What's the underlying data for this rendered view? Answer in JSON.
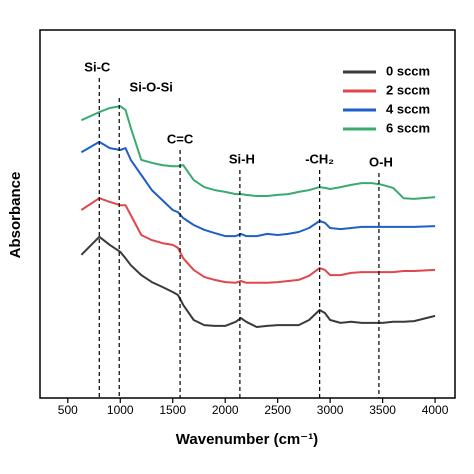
{
  "chart_data": {
    "type": "line",
    "xlabel": "Wavenumber (cm⁻¹)",
    "ylabel": "Absorbance",
    "x": [
      630,
      800,
      900,
      1000,
      1050,
      1100,
      1200,
      1300,
      1400,
      1500,
      1550,
      1600,
      1700,
      1800,
      1900,
      2000,
      2100,
      2150,
      2200,
      2300,
      2400,
      2500,
      2600,
      2700,
      2800,
      2900,
      2950,
      3000,
      3100,
      3200,
      3300,
      3400,
      3500,
      3600,
      3700,
      3800,
      4000
    ],
    "series": [
      {
        "name": "0 sccm",
        "color": "#3a3a3a",
        "values": [
          38.9,
          43.8,
          41.6,
          39.7,
          38.0,
          36.1,
          33.4,
          31.5,
          30.2,
          28.8,
          28.0,
          25.3,
          21.2,
          19.8,
          19.6,
          19.6,
          20.7,
          21.7,
          20.7,
          19.3,
          19.6,
          19.8,
          19.8,
          19.8,
          21.2,
          23.9,
          23.1,
          21.2,
          20.4,
          20.7,
          20.4,
          20.4,
          20.4,
          20.7,
          20.7,
          20.9,
          22.3
        ]
      },
      {
        "name": "2 sccm",
        "color": "#e0474c",
        "values": [
          51.1,
          54.3,
          53.3,
          52.4,
          52.4,
          49.7,
          44.3,
          42.9,
          42.1,
          41.6,
          40.8,
          38.0,
          34.8,
          32.9,
          32.1,
          31.5,
          31.3,
          31.8,
          31.3,
          31.3,
          31.3,
          31.5,
          31.8,
          32.1,
          33.2,
          35.3,
          34.8,
          33.4,
          33.4,
          34.0,
          34.2,
          34.2,
          34.2,
          34.2,
          34.5,
          34.5,
          34.8
        ]
      },
      {
        "name": "4 sccm",
        "color": "#1f5fc8",
        "values": [
          66.8,
          69.6,
          67.9,
          67.4,
          67.9,
          64.7,
          60.6,
          56.5,
          53.8,
          51.1,
          50.5,
          48.9,
          47.0,
          45.7,
          44.8,
          44.0,
          44.0,
          44.6,
          44.0,
          44.0,
          44.6,
          44.3,
          44.6,
          45.1,
          46.2,
          48.1,
          47.6,
          46.2,
          45.9,
          46.2,
          46.5,
          46.5,
          46.5,
          46.5,
          46.5,
          46.5,
          46.7
        ]
      },
      {
        "name": "6 sccm",
        "color": "#3aaa6e",
        "values": [
          75.5,
          77.7,
          78.8,
          79.3,
          78.3,
          73.4,
          64.7,
          63.9,
          63.3,
          63.0,
          63.0,
          63.3,
          59.2,
          57.3,
          56.5,
          56.0,
          55.4,
          55.4,
          55.2,
          54.9,
          54.9,
          55.2,
          55.4,
          56.0,
          56.5,
          57.3,
          57.1,
          56.8,
          57.3,
          57.9,
          58.4,
          58.4,
          57.9,
          57.1,
          54.3,
          54.1,
          54.6
        ]
      }
    ],
    "annotations": [
      {
        "label": "Si-C",
        "x": 800
      },
      {
        "label": "Si-O-Si",
        "x": 990
      },
      {
        "label": "C=C",
        "x": 1570
      },
      {
        "label": "Si-H",
        "x": 2140
      },
      {
        "label": "-CH₂",
        "x": 2900
      },
      {
        "label": "O-H",
        "x": 3465
      }
    ],
    "xlim": [
      235,
      4190
    ],
    "ylim": [
      0,
      100
    ],
    "xticks": [
      500,
      1000,
      1500,
      2000,
      2500,
      3000,
      3500,
      4000
    ],
    "legend": "upper right"
  }
}
